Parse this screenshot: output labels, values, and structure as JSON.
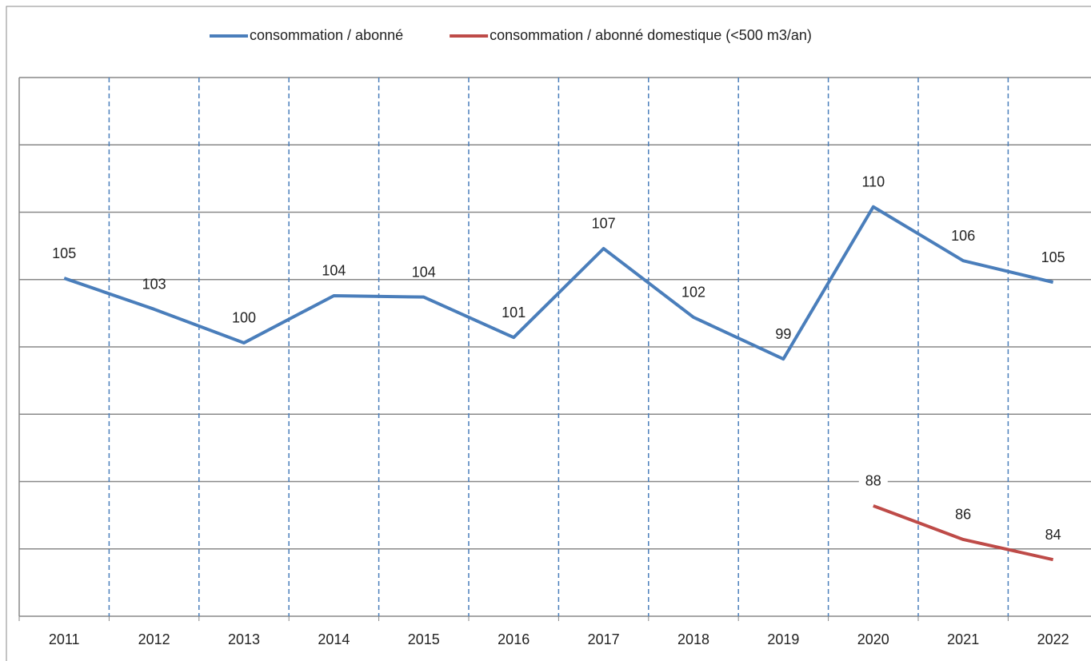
{
  "chart_data": {
    "type": "line",
    "categories": [
      "2011",
      "2012",
      "2013",
      "2014",
      "2015",
      "2016",
      "2017",
      "2018",
      "2019",
      "2020",
      "2021",
      "2022"
    ],
    "series": [
      {
        "name": "consommation / abonné",
        "color": "#4a7ebb",
        "values": [
          105.1,
          102.8,
          100.3,
          103.8,
          103.7,
          100.7,
          107.3,
          102.2,
          99.1,
          110.4,
          106.4,
          104.8
        ],
        "value_labels": [
          "105",
          "103",
          "100",
          "104",
          "104",
          "101",
          "107",
          "102",
          "99",
          "110",
          "106",
          "105"
        ]
      },
      {
        "name": "consommation / abonné domestique (<500 m3/an)",
        "color": "#be4b48",
        "values": [
          null,
          null,
          null,
          null,
          null,
          null,
          null,
          null,
          null,
          88.2,
          85.7,
          84.2
        ],
        "value_labels": [
          null,
          null,
          null,
          null,
          null,
          null,
          null,
          null,
          null,
          "88",
          "86",
          "84"
        ]
      }
    ],
    "ylim": [
      80,
      120
    ],
    "yticks": [
      80,
      85,
      90,
      95,
      100,
      105,
      110,
      115,
      120
    ],
    "grid": true,
    "legend": "top"
  }
}
